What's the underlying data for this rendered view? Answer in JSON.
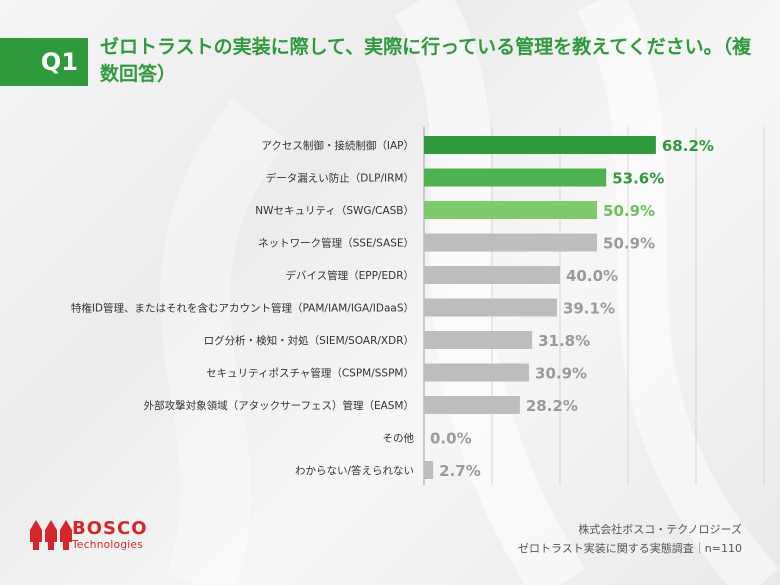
{
  "header": {
    "q_label": "Q1",
    "title": "ゼロトラストの実装に際して、実際に行っている管理を教えてください。（複数回答）"
  },
  "chart_data": {
    "type": "bar",
    "orientation": "horizontal",
    "unit": "%",
    "xlim": [
      0,
      100
    ],
    "grid": true,
    "categories": [
      "アクセス制御・接続制御（IAP）",
      "データ漏えい防止（DLP/IRM）",
      "NWセキュリティ（SWG/CASB）",
      "ネットワーク管理（SSE/SASE）",
      "デバイス管理（EPP/EDR）",
      "特権ID管理、またはそれを含むアカウント管理（PAM/IAM/IGA/IDaaS）",
      "ログ分析・検知・対処（SIEM/SOAR/XDR）",
      "セキュリティポスチャ管理（CSPM/SSPM）",
      "外部攻撃対象領域（アタックサーフェス）管理（EASM）",
      "その他",
      "わからない/答えられない"
    ],
    "values": [
      68.2,
      53.6,
      50.9,
      50.9,
      40.0,
      39.1,
      31.8,
      30.9,
      28.2,
      0.0,
      2.7
    ],
    "value_labels": [
      "68.2%",
      "53.6%",
      "50.9%",
      "50.9%",
      "40.0%",
      "39.1%",
      "31.8%",
      "30.9%",
      "28.2%",
      "0.0%",
      "2.7%"
    ],
    "bar_colors": [
      "#2e9a3c",
      "#4fb14f",
      "#7fca6b",
      "#bdbdbd",
      "#bdbdbd",
      "#bdbdbd",
      "#bdbdbd",
      "#bdbdbd",
      "#bdbdbd",
      "#bdbdbd",
      "#bdbdbd"
    ],
    "label_colors": [
      "#2e9a3c",
      "#2e9a3c",
      "#6cc25b",
      "#9a9a9a",
      "#9a9a9a",
      "#9a9a9a",
      "#9a9a9a",
      "#9a9a9a",
      "#9a9a9a",
      "#9a9a9a",
      "#9a9a9a"
    ]
  },
  "logo": {
    "name": "BOSCO",
    "sub": "Technologies",
    "color": "#d4272a"
  },
  "footer": {
    "company": "株式会社ボスコ・テクノロジーズ",
    "survey": "ゼロトラスト実装に関する実態調査｜n=110"
  }
}
